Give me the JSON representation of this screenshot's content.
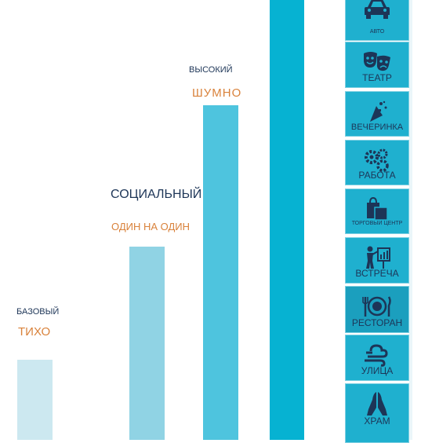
{
  "levels": [
    {
      "title": "БАЗОВЫЙ",
      "subtitle": "ТИХО"
    },
    {
      "title": "СОЦИАЛЬНЫЙ",
      "subtitle": "ОДИН НА ОДИН"
    },
    {
      "title": "ВЫСОКИЙ",
      "subtitle": "ШУМНО"
    }
  ],
  "tiles": [
    {
      "label": "АВТО",
      "icon": "car-icon"
    },
    {
      "label": "ТЕАТР",
      "icon": "theater-masks-icon"
    },
    {
      "label": "ВЕЧЕРИНКА",
      "icon": "party-popper-icon"
    },
    {
      "label": "РАБОТА",
      "icon": "gears-icon"
    },
    {
      "label": "ТОРГОВЫЙ ЦЕНТР",
      "icon": "shopping-bags-icon"
    },
    {
      "label": "ВСТРЕЧА",
      "icon": "presentation-icon"
    },
    {
      "label": "РЕСТОРАН",
      "icon": "plate-cutlery-icon"
    },
    {
      "label": "УЛИЦА",
      "icon": "wind-icon"
    },
    {
      "label": "ХРАМ",
      "icon": "praying-hands-icon"
    }
  ],
  "colors": {
    "bar_basic": "#cce8f0",
    "bar_social": "#90d3e4",
    "bar_high": "#4ec4de",
    "bar_max": "#06b2d2",
    "title_color": "#1d3557",
    "subtitle_color": "#d9823b",
    "tile_bg": "#1fb0cf"
  }
}
